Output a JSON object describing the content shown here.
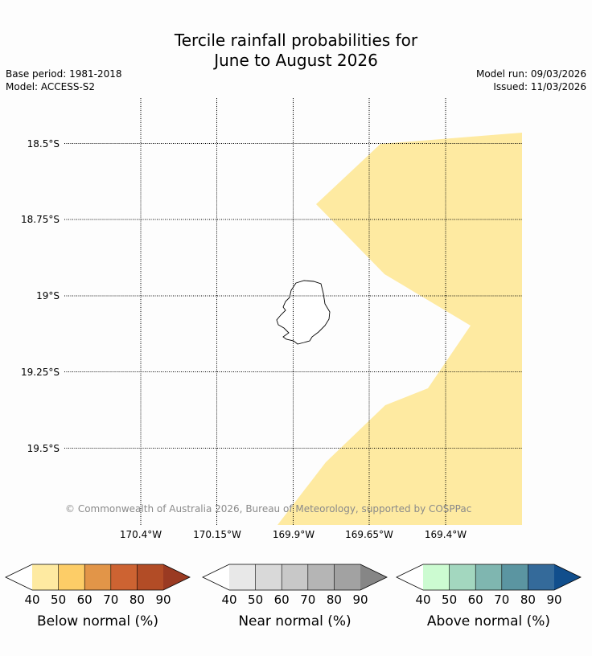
{
  "title": {
    "line1": "Tercile rainfall probabilities for",
    "line2": "June to August 2026"
  },
  "meta": {
    "base_period": "Base period: 1981-2018",
    "model": "Model: ACCESS-S2",
    "model_run": "Model run: 09/03/2026",
    "issued": "Issued: 11/03/2026"
  },
  "map": {
    "lat_labels": [
      "18.5°S",
      "18.75°S",
      "19°S",
      "19.25°S",
      "19.5°S"
    ],
    "lon_labels": [
      "170.4°W",
      "170.15°W",
      "169.9°W",
      "169.65°W",
      "169.4°W"
    ],
    "copyright": "© Commonwealth of Australia 2026, Bureau of Meteorology, supported by COSPPac",
    "shaded_category": "Below normal",
    "shaded_color": "#feeaa1"
  },
  "legends": [
    {
      "label": "Below normal (%)",
      "ticks": [
        "40",
        "50",
        "60",
        "70",
        "80",
        "90"
      ],
      "colors": [
        "#ffffff",
        "#feeaa1",
        "#fdcd67",
        "#e29548",
        "#cd6332",
        "#b24c26",
        "#9a3a22"
      ]
    },
    {
      "label": "Near normal (%)",
      "ticks": [
        "40",
        "50",
        "60",
        "70",
        "80",
        "90"
      ],
      "colors": [
        "#ffffff",
        "#e8e8e8",
        "#d9d9d9",
        "#c8c8c8",
        "#b5b5b5",
        "#a2a2a2",
        "#868686"
      ]
    },
    {
      "label": "Above normal (%)",
      "ticks": [
        "40",
        "50",
        "60",
        "70",
        "80",
        "90"
      ],
      "colors": [
        "#ffffff",
        "#ccfbd1",
        "#a3d7bf",
        "#7fb6b0",
        "#5b95a1",
        "#346a9a",
        "#114e8c"
      ]
    }
  ]
}
